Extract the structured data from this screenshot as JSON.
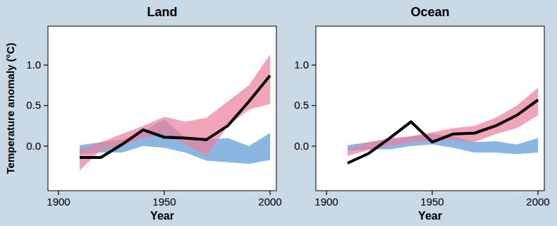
{
  "chart_data": [
    {
      "type": "line",
      "title": "Land",
      "ylabel": "Temperature anomaly (°C)",
      "xlabel": "Year",
      "xlim": [
        1895,
        2003
      ],
      "xticks": [
        1900,
        1950,
        2000
      ],
      "ylim": [
        -0.55,
        1.48
      ],
      "yticks": [
        {
          "value": 0,
          "label": "0.0"
        },
        0.5,
        {
          "value": 1,
          "label": "1.0"
        }
      ],
      "x": [
        1910,
        1920,
        1930,
        1940,
        1950,
        1960,
        1970,
        1980,
        1990,
        2000
      ],
      "series": [
        {
          "type": "band",
          "color": "#5b9bd5",
          "low": [
            -0.1,
            -0.08,
            -0.08,
            0.0,
            -0.02,
            -0.08,
            -0.18,
            -0.2,
            -0.22,
            -0.17
          ],
          "high": [
            0.01,
            0.05,
            0.08,
            0.18,
            0.33,
            0.1,
            0.08,
            0.1,
            0.0,
            0.16
          ]
        },
        {
          "type": "band",
          "color": "#ec7f9c",
          "low": [
            -0.3,
            -0.05,
            0.0,
            0.1,
            0.15,
            0.02,
            -0.12,
            0.25,
            0.45,
            0.52
          ],
          "high": [
            -0.05,
            0.05,
            0.15,
            0.25,
            0.36,
            0.3,
            0.35,
            0.55,
            0.75,
            1.13
          ]
        },
        {
          "type": "line",
          "color": "#000000",
          "values": [
            -0.14,
            -0.14,
            0.02,
            0.2,
            0.11,
            0.1,
            0.08,
            0.25,
            0.55,
            0.87
          ]
        }
      ]
    },
    {
      "type": "line",
      "title": "Ocean",
      "xlabel": "Year",
      "xlim": [
        1895,
        2003
      ],
      "xticks": [
        1900,
        1950,
        2000
      ],
      "ylim": [
        -0.55,
        1.48
      ],
      "yticks": [
        {
          "value": 0,
          "label": "0.0"
        },
        0.5,
        {
          "value": 1,
          "label": "1.0"
        }
      ],
      "x": [
        1910,
        1920,
        1930,
        1940,
        1950,
        1960,
        1970,
        1980,
        1990,
        2000
      ],
      "series": [
        {
          "type": "band",
          "color": "#5b9bd5",
          "low": [
            -0.06,
            -0.04,
            -0.04,
            0.0,
            0.02,
            -0.02,
            -0.08,
            -0.08,
            -0.1,
            -0.08
          ],
          "high": [
            0.01,
            0.05,
            0.08,
            0.12,
            0.15,
            0.12,
            0.05,
            0.06,
            0.02,
            0.1
          ]
        },
        {
          "type": "band",
          "color": "#ec7f9c",
          "low": [
            -0.12,
            -0.05,
            0.0,
            0.05,
            0.06,
            0.08,
            0.05,
            0.15,
            0.22,
            0.38
          ],
          "high": [
            -0.05,
            0.05,
            0.1,
            0.12,
            0.17,
            0.22,
            0.25,
            0.35,
            0.5,
            0.72
          ]
        },
        {
          "type": "line",
          "color": "#000000",
          "values": [
            -0.21,
            -0.09,
            0.1,
            0.3,
            0.05,
            0.15,
            0.16,
            0.25,
            0.38,
            0.57
          ]
        }
      ]
    }
  ]
}
